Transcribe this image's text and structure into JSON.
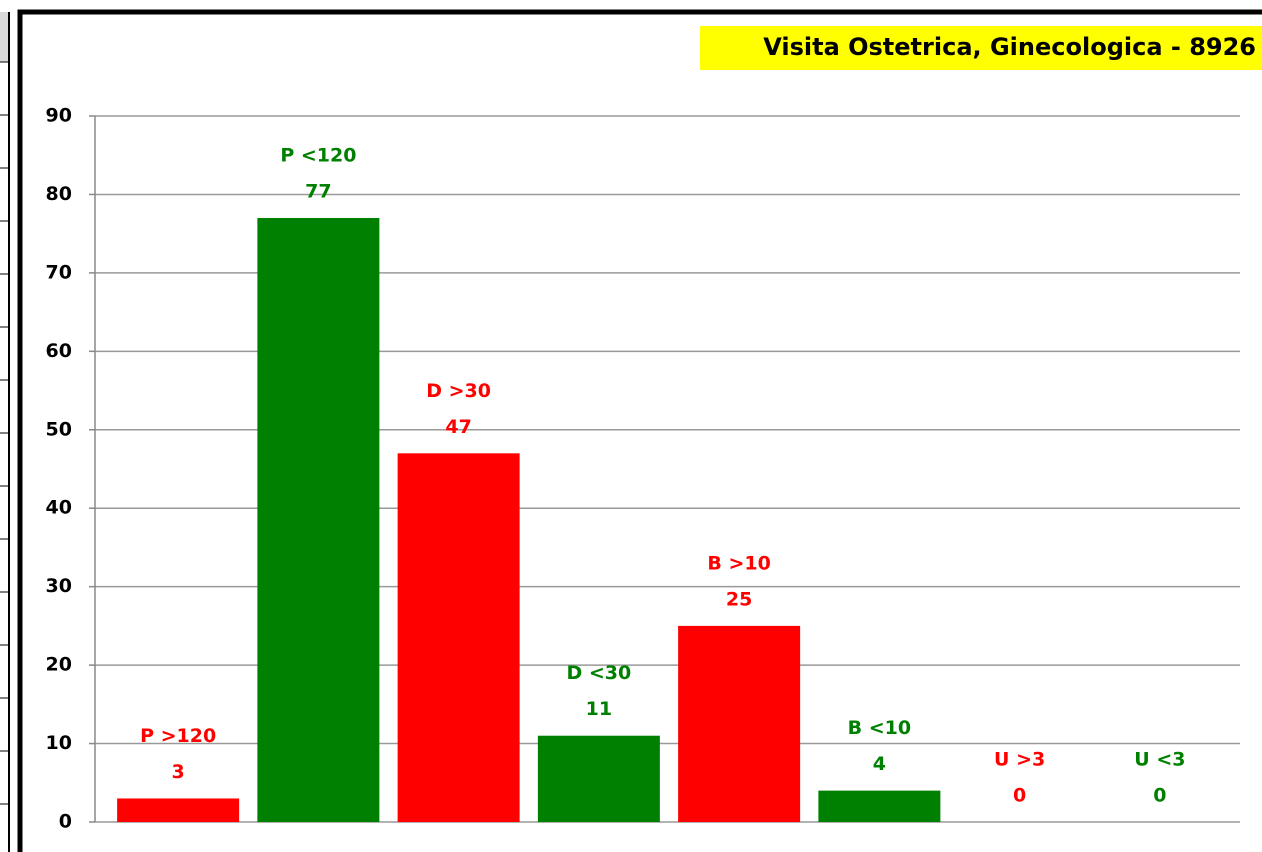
{
  "chart_data": {
    "type": "bar",
    "title": "Visita Ostetrica, Ginecologica - 8926",
    "categories": [
      "P >120",
      "P <120",
      "D >30",
      "D <30",
      "B >10",
      "B <10",
      "U >3",
      "U <3"
    ],
    "values": [
      3,
      77,
      47,
      11,
      25,
      4,
      0,
      0
    ],
    "colors": [
      "#ff0000",
      "#008000",
      "#ff0000",
      "#008000",
      "#ff0000",
      "#008000",
      "#ff0000",
      "#008000"
    ],
    "ylim": [
      0,
      90
    ],
    "yticks": [
      0,
      10,
      20,
      30,
      40,
      50,
      60,
      70,
      80,
      90
    ],
    "grid": true
  }
}
